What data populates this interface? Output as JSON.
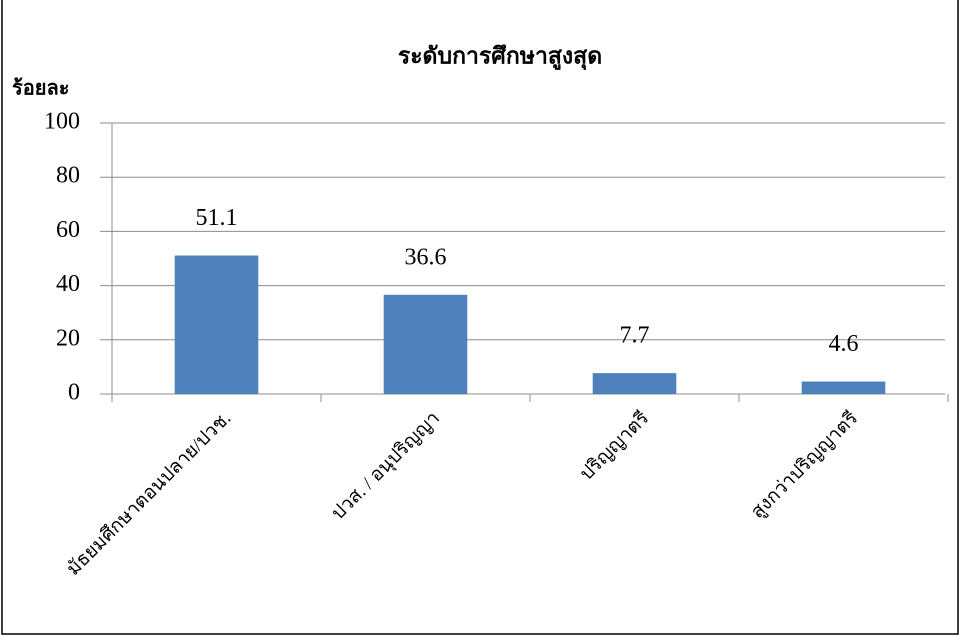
{
  "chart_data": {
    "type": "bar",
    "title": "ระดับการศึกษาสูงสุด",
    "y_label": "ร้อยละ",
    "categories": [
      "มัธยมศึกษาตอนปลาย/ปวช.",
      "ปวส. / อนุปริญญา",
      "ปริญญาตรี",
      "สูงกว่าปริญญาตรี"
    ],
    "values": [
      51.1,
      36.6,
      7.7,
      4.6
    ],
    "color": "#4f81bd",
    "ylim": [
      0,
      100
    ],
    "yticks": [
      0,
      20,
      40,
      60,
      80,
      100
    ],
    "grid": true
  }
}
